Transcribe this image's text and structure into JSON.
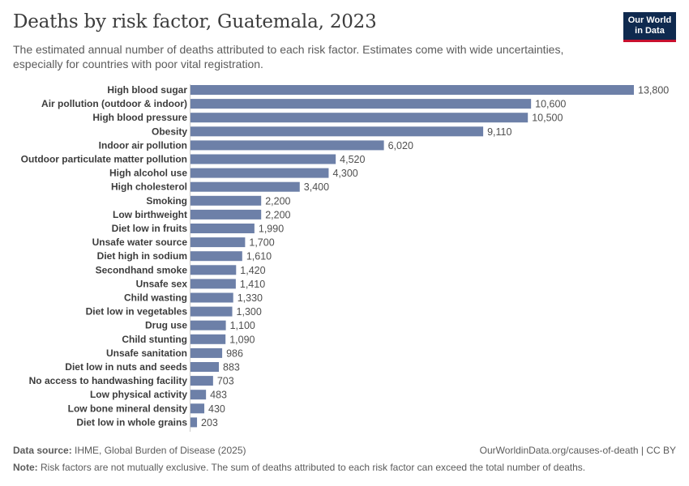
{
  "header": {
    "title": "Deaths by risk factor, Guatemala, 2023",
    "subtitle": "The estimated annual number of deaths attributed to each risk factor. Estimates come with wide uncertainties, especially for countries with poor vital registration.",
    "logo_line1": "Our World",
    "logo_line2": "in Data"
  },
  "chart_data": {
    "type": "bar",
    "orientation": "horizontal",
    "title": "Deaths by risk factor, Guatemala, 2023",
    "xlabel": "",
    "ylabel": "",
    "xlim": [
      0,
      13800
    ],
    "bar_color": "#6d80a8",
    "categories": [
      "High blood sugar",
      "Air pollution (outdoor & indoor)",
      "High blood pressure",
      "Obesity",
      "Indoor air pollution",
      "Outdoor particulate matter pollution",
      "High alcohol use",
      "High cholesterol",
      "Smoking",
      "Low birthweight",
      "Diet low in fruits",
      "Unsafe water source",
      "Diet high in sodium",
      "Secondhand smoke",
      "Unsafe sex",
      "Child wasting",
      "Diet low in vegetables",
      "Drug use",
      "Child stunting",
      "Unsafe sanitation",
      "Diet low in nuts and seeds",
      "No access to handwashing facility",
      "Low physical activity",
      "Low bone mineral density",
      "Diet low in whole grains"
    ],
    "values": [
      13800,
      10600,
      10500,
      9110,
      6020,
      4520,
      4300,
      3400,
      2200,
      2200,
      1990,
      1700,
      1610,
      1420,
      1410,
      1330,
      1300,
      1100,
      1090,
      986,
      883,
      703,
      483,
      430,
      203
    ],
    "value_labels": [
      "13,800",
      "10,600",
      "10,500",
      "9,110",
      "6,020",
      "4,520",
      "4,300",
      "3,400",
      "2,200",
      "2,200",
      "1,990",
      "1,700",
      "1,610",
      "1,420",
      "1,410",
      "1,330",
      "1,300",
      "1,100",
      "1,090",
      "986",
      "883",
      "703",
      "483",
      "430",
      "203"
    ]
  },
  "footer": {
    "source_label": "Data source:",
    "source_text": "IHME, Global Burden of Disease (2025)",
    "credit": "OurWorldinData.org/causes-of-death | CC BY",
    "note_label": "Note:",
    "note_text": "Risk factors are not mutually exclusive. The sum of deaths attributed to each risk factor can exceed the total number of deaths."
  }
}
